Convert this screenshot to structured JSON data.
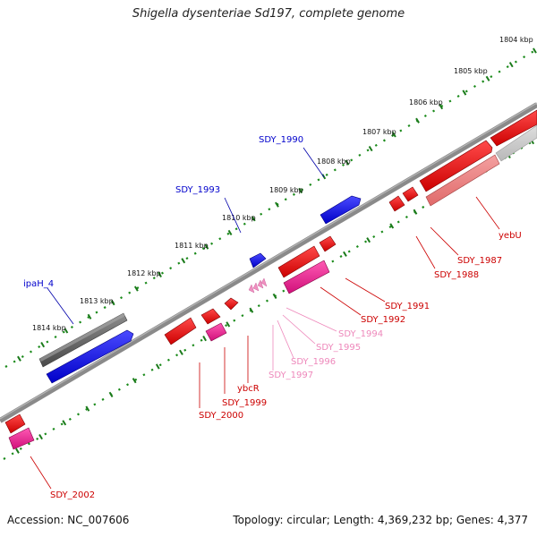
{
  "title": "Shigella dysenteriae Sd197, complete genome",
  "accession_text": "Accession: NC_007606",
  "topology_text": "Topology: circular; Length: 4,369,232 bp; Genes: 4,377",
  "scale_labels": [
    "1804 kbp",
    "1805 kbp",
    "1806 kbp",
    "1807 kbp",
    "1808 kbp",
    "1809 kbp",
    "1810 kbp",
    "1811 kbp",
    "1812 kbp",
    "1813 kbp",
    "1814 kbp"
  ],
  "genes": [
    {
      "name": "SDY_1990",
      "strand": "forward",
      "color": "#0000cc"
    },
    {
      "name": "SDY_1993",
      "strand": "forward",
      "color": "#0000cc"
    },
    {
      "name": "ipaH_4",
      "strand": "forward",
      "color": "#0000cc"
    },
    {
      "name": "yebU",
      "strand": "reverse",
      "color": "#cc0000"
    },
    {
      "name": "SDY_1987",
      "strand": "reverse",
      "color": "#cc0000"
    },
    {
      "name": "SDY_1988",
      "strand": "reverse",
      "color": "#cc0000"
    },
    {
      "name": "SDY_1991",
      "strand": "reverse",
      "color": "#cc0000"
    },
    {
      "name": "SDY_1992",
      "strand": "reverse",
      "color": "#cc0000"
    },
    {
      "name": "SDY_1994",
      "strand": "reverse",
      "color": "#ee88bb"
    },
    {
      "name": "SDY_1995",
      "strand": "reverse",
      "color": "#ee88bb"
    },
    {
      "name": "SDY_1996",
      "strand": "reverse",
      "color": "#ee88bb"
    },
    {
      "name": "SDY_1997",
      "strand": "reverse",
      "color": "#ee88bb"
    },
    {
      "name": "ybcR",
      "strand": "reverse",
      "color": "#cc0000"
    },
    {
      "name": "SDY_1999",
      "strand": "reverse",
      "color": "#cc0000"
    },
    {
      "name": "SDY_2000",
      "strand": "reverse",
      "color": "#cc0000"
    },
    {
      "name": "SDY_2002",
      "strand": "reverse",
      "color": "#cc0000"
    }
  ],
  "colors": {
    "backbone": "#8a8a8a",
    "scale_ticks": "#1a7a1a",
    "forward_feature": "#0000ee",
    "reverse_feature": "#ee0000",
    "pseudogene_feature": "#ee2299",
    "rna_feature": "#ee88bb",
    "grey_feature": "#666666"
  }
}
